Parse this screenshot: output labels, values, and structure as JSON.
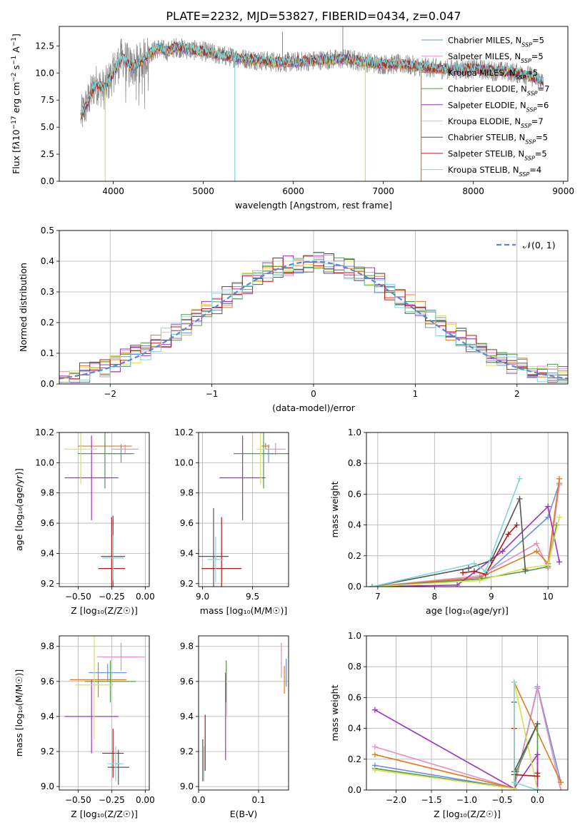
{
  "figure_title": "PLATE=2232, MJD=53827, FIBERID=0434, z=0.047",
  "models": [
    {
      "name": "Chabrier MILES, N",
      "sub": "SSP",
      "n": "5",
      "color": "#6b8fe0"
    },
    {
      "name": "Salpeter MILES, N",
      "sub": "SSP",
      "n": "5",
      "color": "#e58fc0"
    },
    {
      "name": "Kroupa MILES, N",
      "sub": "SSP",
      "n": "5",
      "color": "#e07a20"
    },
    {
      "name": "Chabrier ELODIE, N",
      "sub": "SSP",
      "n": "7",
      "color": "#4f9a4f"
    },
    {
      "name": "Salpeter ELODIE, N",
      "sub": "SSP",
      "n": "6",
      "color": "#a030c0"
    },
    {
      "name": "Kroupa ELODIE, N",
      "sub": "SSP",
      "n": "7",
      "color": "#d8e050"
    },
    {
      "name": "Chabrier STELIB, N",
      "sub": "SSP",
      "n": "5",
      "color": "#555555"
    },
    {
      "name": "Salpeter STELIB, N",
      "sub": "SSP",
      "n": "5",
      "color": "#b01818"
    },
    {
      "name": "Kroupa STELIB, N",
      "sub": "SSP",
      "n": "4",
      "color": "#7fd8dc"
    }
  ],
  "chart_data": [
    {
      "id": "spectrum",
      "type": "line",
      "xlabel": "wavelength [Angstrom, rest frame]",
      "ylabel_html": "Flux [f<tspan font-style='italic'>λ</tspan>10<tspan baseline-shift='super' font-size='9'>−17</tspan> erg cm<tspan baseline-shift='super' font-size='9'>−2</tspan> s<tspan baseline-shift='super' font-size='9'>−1</tspan> A<tspan baseline-shift='super' font-size='9'>−1</tspan>]",
      "xlim": [
        3400,
        9050
      ],
      "ylim": [
        0,
        14.3
      ],
      "xticks": [
        4000,
        5000,
        6000,
        7000,
        8000,
        9000
      ],
      "yticks": [
        0.0,
        2.5,
        5.0,
        7.5,
        10.0,
        12.5
      ],
      "ytick_labels": [
        "0.0",
        "2.5",
        "5.0",
        "7.5",
        "10.0",
        "12.5"
      ],
      "data_color": "#888888",
      "data_anchor": {
        "x": [
          3640,
          3700,
          3800,
          3900,
          4000,
          4100,
          4200,
          4300,
          4400,
          4500,
          4600,
          4700,
          4800,
          5000,
          5200,
          5500,
          5800,
          6000,
          6300,
          6600,
          6800,
          7000,
          7200,
          7400,
          7600,
          7800,
          8000,
          8200,
          8400,
          8600,
          8780
        ],
        "y": [
          6.0,
          7.0,
          9.0,
          8.5,
          10.0,
          11.5,
          10.5,
          11.0,
          11.8,
          12.3,
          12.0,
          12.4,
          12.2,
          12.0,
          11.6,
          11.3,
          11.0,
          11.0,
          11.2,
          11.3,
          11.0,
          10.8,
          10.8,
          10.6,
          10.4,
          10.3,
          10.4,
          10.2,
          10.1,
          9.8,
          9.2
        ]
      },
      "model_range": [
        3640,
        8780
      ],
      "dips": [
        {
          "x": 3910,
          "y": 0.0,
          "color": "#d8e050"
        },
        {
          "x": 5350,
          "y": 0.0,
          "color": "#7fd8dc"
        },
        {
          "x": 6800,
          "y": 0.0,
          "color": "#d8e050"
        },
        {
          "x": 7420,
          "y": 0.0,
          "color": "#e07a20"
        }
      ]
    },
    {
      "id": "residuals",
      "type": "histogram",
      "xlabel": "(data-model)/error",
      "ylabel": "Normed distribution",
      "xlim": [
        -2.5,
        2.5
      ],
      "ylim": [
        0,
        0.5
      ],
      "xticks": [
        -2,
        -1,
        0,
        1,
        2
      ],
      "xtick_labels": [
        "−2",
        "−1",
        "0",
        "1",
        "2"
      ],
      "yticks": [
        0,
        0.1,
        0.2,
        0.3,
        0.4,
        0.5
      ],
      "ytick_labels": [
        "0.0",
        "0.1",
        "0.2",
        "0.3",
        "0.4",
        "0.5"
      ],
      "bin_width": 0.1,
      "normal_label": "𝒩(0, 1)",
      "normal_color": "#5b84d8"
    },
    {
      "id": "age_vs_Z",
      "type": "errorbar",
      "xlabel": "Z [log₁₀(Z/Z☉)]",
      "ylabel": "age  [log₁₀(age/yr)]",
      "xlim": [
        -0.64,
        0.03
      ],
      "ylim": [
        9.18,
        10.2
      ],
      "xticks": [
        -0.5,
        -0.25,
        0.0
      ],
      "xtick_labels": [
        "−0.50",
        "−0.25",
        "0.00"
      ],
      "yticks": [
        9.2,
        9.4,
        9.6,
        9.8,
        10.0,
        10.2
      ],
      "ytick_labels": [
        "9.2",
        "9.4",
        "9.6",
        "9.8",
        "10.0",
        "10.2"
      ],
      "points": [
        {
          "m": 0,
          "x": -0.18,
          "xe": 0.1,
          "y": 10.06,
          "ye": 0.06
        },
        {
          "m": 1,
          "x": -0.15,
          "xe": 0.1,
          "y": 10.09,
          "ye": 0.03
        },
        {
          "m": 2,
          "x": -0.3,
          "xe": 0.2,
          "y": 10.11,
          "ye": 0.02
        },
        {
          "m": 3,
          "x": -0.3,
          "xe": 0.2,
          "y": 10.06,
          "ye": 0.23
        },
        {
          "m": 4,
          "x": -0.4,
          "xe": 0.2,
          "y": 9.9,
          "ye": 0.28
        },
        {
          "m": 5,
          "x": -0.48,
          "xe": 0.12,
          "y": 10.09,
          "ye": 0.23
        },
        {
          "m": 6,
          "x": -0.24,
          "xe": 0.09,
          "y": 9.38,
          "ye": 0.27
        },
        {
          "m": 7,
          "x": -0.25,
          "xe": 0.1,
          "y": 9.3,
          "ye": 0.34
        },
        {
          "m": 8,
          "x": -0.24,
          "xe": 0.08,
          "y": 9.37,
          "ye": 0.15
        }
      ]
    },
    {
      "id": "age_vs_mass",
      "type": "errorbar",
      "xlabel": "mass [log₁₀(M/M☉)]",
      "ylabel": "",
      "xlim": [
        8.96,
        9.86
      ],
      "ylim": [
        9.18,
        10.2
      ],
      "xticks": [
        9.0,
        9.5
      ],
      "xtick_labels": [
        "9.0",
        "9.5"
      ],
      "yticks": [
        9.2,
        9.4,
        9.6,
        9.8,
        10.0,
        10.2
      ],
      "ytick_labels": [
        "9.2",
        "9.4",
        "9.6",
        "9.8",
        "10.0",
        "10.2"
      ],
      "points": [
        {
          "m": 0,
          "x": 9.66,
          "xe": 0.05,
          "y": 10.06,
          "ye": 0.06
        },
        {
          "m": 1,
          "x": 9.73,
          "xe": 0.1,
          "y": 10.09,
          "ye": 0.04
        },
        {
          "m": 2,
          "x": 9.63,
          "xe": 0.04,
          "y": 10.11,
          "ye": 0.02
        },
        {
          "m": 3,
          "x": 9.61,
          "xe": 0.3,
          "y": 10.06,
          "ye": 0.23
        },
        {
          "m": 4,
          "x": 9.4,
          "xe": 0.23,
          "y": 9.9,
          "ye": 0.28
        },
        {
          "m": 5,
          "x": 9.58,
          "xe": 0.04,
          "y": 10.09,
          "ye": 0.23
        },
        {
          "m": 6,
          "x": 9.11,
          "xe": 0.15,
          "y": 9.38,
          "ye": 0.32
        },
        {
          "m": 7,
          "x": 9.19,
          "xe": 0.2,
          "y": 9.3,
          "ye": 0.34
        },
        {
          "m": 8,
          "x": 9.13,
          "xe": 0.08,
          "y": 9.36,
          "ye": 0.15
        }
      ]
    },
    {
      "id": "weight_vs_age",
      "type": "line",
      "xlabel": "age  [log₁₀(age/yr)]",
      "ylabel": "mass weight",
      "xlim": [
        6.8,
        10.35
      ],
      "ylim": [
        0,
        1.0
      ],
      "xticks": [
        7,
        8,
        9,
        10
      ],
      "xtick_labels": [
        "7",
        "8",
        "9",
        "10"
      ],
      "yticks": [
        0,
        0.2,
        0.4,
        0.6,
        0.8,
        1.0
      ],
      "ytick_labels": [
        "0.0",
        "0.2",
        "0.4",
        "0.6",
        "0.8",
        "1.0"
      ],
      "series": [
        {
          "m": 0,
          "x": [
            6.9,
            8.8,
            10.0,
            10.2
          ],
          "y": [
            0.0,
            0.05,
            0.45,
            0.67
          ]
        },
        {
          "m": 1,
          "x": [
            6.9,
            8.8,
            9.8,
            10.0,
            10.2
          ],
          "y": [
            0.0,
            0.07,
            0.28,
            0.12,
            0.66
          ]
        },
        {
          "m": 2,
          "x": [
            6.9,
            8.8,
            9.8,
            10.0,
            10.2
          ],
          "y": [
            0.0,
            0.06,
            0.23,
            0.15,
            0.7
          ]
        },
        {
          "m": 3,
          "x": [
            6.9,
            8.8,
            9.6,
            10.0,
            10.15
          ],
          "y": [
            0.0,
            0.05,
            0.1,
            0.13,
            0.4
          ]
        },
        {
          "m": 4,
          "x": [
            6.9,
            8.4,
            9.2,
            10.0,
            10.2
          ],
          "y": [
            0.0,
            0.01,
            0.23,
            0.52,
            0.16
          ]
        },
        {
          "m": 5,
          "x": [
            6.9,
            8.8,
            9.6,
            10.0,
            10.2
          ],
          "y": [
            0.0,
            0.04,
            0.12,
            0.14,
            0.45
          ]
        },
        {
          "m": 6,
          "x": [
            6.9,
            8.6,
            9.0,
            9.5,
            9.6
          ],
          "y": [
            0.0,
            0.12,
            0.17,
            0.57,
            0.11
          ]
        },
        {
          "m": 7,
          "x": [
            8.5,
            8.7,
            8.9,
            9.3,
            9.45
          ],
          "y": [
            0.09,
            0.1,
            0.08,
            0.34,
            0.4
          ]
        },
        {
          "m": 8,
          "x": [
            6.9,
            8.7,
            8.9,
            9.5
          ],
          "y": [
            0.0,
            0.15,
            0.1,
            0.7
          ]
        }
      ]
    },
    {
      "id": "mass_vs_Z",
      "type": "errorbar",
      "xlabel": "Z [log₁₀(Z/Z☉)]",
      "ylabel": "mass [log₁₀(M/M☉)]",
      "xlim": [
        -0.64,
        0.03
      ],
      "ylim": [
        8.98,
        9.86
      ],
      "xticks": [
        -0.5,
        -0.25,
        0.0
      ],
      "xtick_labels": [
        "−0.50",
        "−0.25",
        "0.00"
      ],
      "yticks": [
        9.0,
        9.2,
        9.4,
        9.6,
        9.8
      ],
      "ytick_labels": [
        "9.0",
        "9.2",
        "9.4",
        "9.6",
        "9.8"
      ],
      "points": [
        {
          "m": 0,
          "x": -0.28,
          "xe": 0.14,
          "y": 9.65,
          "ye": 0.05
        },
        {
          "m": 1,
          "x": -0.18,
          "xe": 0.18,
          "y": 9.74,
          "ye": 0.08
        },
        {
          "m": 2,
          "x": -0.35,
          "xe": 0.21,
          "y": 9.61,
          "ye": 0.1
        },
        {
          "m": 3,
          "x": -0.26,
          "xe": 0.19,
          "y": 9.6,
          "ye": 0.12
        },
        {
          "m": 4,
          "x": -0.4,
          "xe": 0.2,
          "y": 9.4,
          "ye": 0.21
        },
        {
          "m": 5,
          "x": -0.38,
          "xe": 0.14,
          "y": 9.58,
          "ye": 0.31
        },
        {
          "m": 6,
          "x": -0.2,
          "xe": 0.08,
          "y": 9.11,
          "ye": 0.1
        },
        {
          "m": 7,
          "x": -0.24,
          "xe": 0.08,
          "y": 9.19,
          "ye": 0.14
        },
        {
          "m": 8,
          "x": -0.22,
          "xe": 0.06,
          "y": 9.13,
          "ye": 0.1
        }
      ]
    },
    {
      "id": "mass_vs_EBV",
      "type": "errorbar",
      "xlabel": "E(B-V)",
      "ylabel": "",
      "xlim": [
        0.0,
        0.15
      ],
      "ylim": [
        8.98,
        9.86
      ],
      "xticks": [
        0.0,
        0.1
      ],
      "xtick_labels": [
        "0.0",
        "0.1"
      ],
      "yticks": [
        9.0,
        9.2,
        9.4,
        9.6,
        9.8
      ],
      "ytick_labels": [
        "9.0",
        "9.2",
        "9.4",
        "9.6",
        "9.8"
      ],
      "points": [
        {
          "m": 0,
          "x": 0.146,
          "xe": 0.0,
          "y": 9.65,
          "ye": 0.08
        },
        {
          "m": 1,
          "x": 0.138,
          "xe": 0.0,
          "y": 9.72,
          "ye": 0.1
        },
        {
          "m": 2,
          "x": 0.143,
          "xe": 0.0,
          "y": 9.61,
          "ye": 0.08
        },
        {
          "m": 3,
          "x": 0.046,
          "xe": 0.0,
          "y": 9.6,
          "ye": 0.12
        },
        {
          "m": 4,
          "x": 0.045,
          "xe": 0.0,
          "y": 9.4,
          "ye": 0.25
        },
        {
          "m": 5,
          "x": 0.047,
          "xe": 0.0,
          "y": 9.55,
          "ye": 0.15
        },
        {
          "m": 6,
          "x": 0.007,
          "xe": 0.0,
          "y": 9.15,
          "ye": 0.12
        },
        {
          "m": 7,
          "x": 0.011,
          "xe": 0.0,
          "y": 9.25,
          "ye": 0.16
        },
        {
          "m": 8,
          "x": 0.009,
          "xe": 0.0,
          "y": 9.13,
          "ye": 0.1
        }
      ]
    },
    {
      "id": "weight_vs_Z",
      "type": "line",
      "xlabel": "Z [log₁₀(Z/Z☉)]",
      "ylabel": "mass weight",
      "xlim": [
        -2.42,
        0.43
      ],
      "ylim": [
        0,
        1.0
      ],
      "xticks": [
        -2.0,
        -1.5,
        -1.0,
        -0.5,
        0.0
      ],
      "xtick_labels": [
        "−2.0",
        "−1.5",
        "−1.0",
        "−0.5",
        "0.0"
      ],
      "yticks": [
        0,
        0.2,
        0.4,
        0.6,
        0.8,
        1.0
      ],
      "ytick_labels": [
        "0.0",
        "0.2",
        "0.4",
        "0.6",
        "0.8",
        "1.0"
      ],
      "series": [
        {
          "m": 0,
          "x": [
            -2.3,
            -0.33,
            0.0,
            0.33
          ],
          "y": [
            0.16,
            0.01,
            0.67,
            0.05
          ]
        },
        {
          "m": 1,
          "x": [
            -2.3,
            -0.33,
            0.0,
            0.33
          ],
          "y": [
            0.28,
            0.01,
            0.66,
            0.0
          ]
        },
        {
          "m": 2,
          "x": [
            -2.3,
            -0.33,
            -0.33,
            0.33
          ],
          "y": [
            0.23,
            0.01,
            0.7,
            0.05
          ]
        },
        {
          "m": 3,
          "x": [
            -2.3,
            -0.33,
            -0.3,
            0.0,
            0.0
          ],
          "y": [
            0.14,
            0.01,
            0.12,
            0.43,
            0.0
          ]
        },
        {
          "m": 4,
          "x": [
            -2.3,
            -0.33,
            0.0,
            0.0
          ],
          "y": [
            0.52,
            0.01,
            0.23,
            0.0
          ]
        },
        {
          "m": 5,
          "x": [
            -2.3,
            -0.33,
            -0.33,
            0.0
          ],
          "y": [
            0.13,
            0.01,
            0.7,
            0.0
          ]
        },
        {
          "m": 6,
          "x": [
            -0.33,
            -0.33,
            0.0
          ],
          "y": [
            0.57,
            0.12,
            0.43
          ]
        },
        {
          "m": 7,
          "x": [
            -0.33,
            -0.33,
            0.0,
            0.0
          ],
          "y": [
            0.4,
            0.1,
            0.09,
            0.11
          ]
        },
        {
          "m": 8,
          "x": [
            -0.33,
            -0.33,
            0.0
          ],
          "y": [
            0.7,
            0.05,
            0.0
          ]
        }
      ]
    }
  ]
}
